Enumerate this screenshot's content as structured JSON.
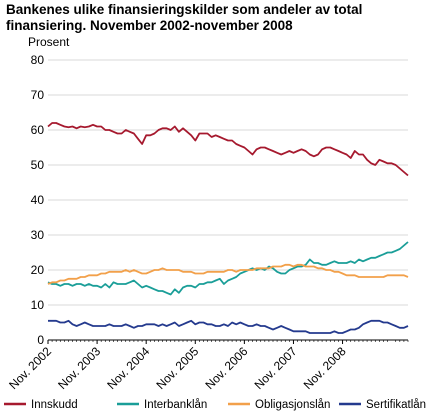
{
  "chart_data": {
    "type": "line",
    "title": "Bankenes ulike finansieringskilder som andeler av total finansiering. November 2002-november 2008",
    "ylabel": "Prosent",
    "xlabel": "",
    "ylim": [
      0,
      80
    ],
    "yticks": [
      0,
      10,
      20,
      30,
      40,
      50,
      60,
      70,
      80
    ],
    "grid": true,
    "legend_position": "bottom",
    "x_start": "2002-11",
    "x_step": "month",
    "x_tick_labels": [
      "Nov. 2002",
      "Nov. 2003",
      "Nov. 2004",
      "Nov. 2005",
      "Nov. 2006",
      "Nov. 2007",
      "Nov. 2008"
    ],
    "series": [
      {
        "name": "Innskudd",
        "color": "#a6192e",
        "values": [
          61.0,
          62.0,
          62.0,
          61.5,
          61.0,
          60.8,
          61.0,
          60.5,
          61.0,
          60.8,
          61.0,
          61.5,
          61.0,
          61.0,
          60.0,
          60.0,
          59.5,
          59.0,
          59.0,
          60.0,
          59.5,
          59.0,
          57.5,
          56.0,
          58.5,
          58.5,
          59.0,
          60.0,
          60.5,
          60.5,
          60.0,
          61.0,
          59.5,
          60.5,
          59.5,
          58.5,
          57.0,
          59.0,
          59.0,
          59.0,
          58.0,
          58.5,
          58.0,
          57.5,
          57.0,
          57.0,
          56.0,
          55.5,
          55.0,
          54.0,
          53.0,
          54.5,
          55.0,
          55.0,
          54.5,
          54.0,
          53.5,
          53.0,
          53.5,
          54.0,
          53.5,
          54.0,
          54.5,
          54.0,
          53.0,
          52.5,
          53.0,
          54.5,
          55.0,
          55.0,
          54.5,
          54.0,
          53.5,
          53.0,
          52.0,
          54.0,
          53.0,
          53.0,
          51.5,
          50.5,
          50.0,
          51.5,
          51.0,
          50.5,
          50.5,
          50.0,
          49.0,
          48.0,
          47.0
        ]
      },
      {
        "name": "Interbanklån",
        "color": "#1a9e98",
        "values": [
          16.5,
          16.0,
          16.0,
          15.5,
          16.0,
          16.0,
          15.5,
          16.0,
          16.0,
          15.5,
          16.0,
          15.5,
          15.5,
          15.0,
          16.0,
          15.0,
          16.5,
          16.0,
          16.0,
          16.0,
          16.5,
          17.0,
          16.0,
          15.0,
          15.5,
          15.0,
          14.5,
          14.0,
          14.0,
          13.5,
          13.0,
          14.5,
          13.5,
          15.0,
          15.5,
          15.5,
          15.0,
          16.0,
          16.0,
          16.5,
          16.5,
          17.0,
          17.5,
          16.0,
          17.0,
          17.5,
          18.0,
          19.0,
          19.5,
          20.0,
          20.5,
          20.0,
          20.5,
          20.0,
          21.0,
          20.5,
          19.5,
          19.0,
          19.0,
          20.0,
          20.5,
          21.0,
          21.0,
          21.5,
          23.0,
          22.0,
          22.0,
          21.5,
          21.5,
          22.0,
          22.5,
          22.0,
          22.0,
          22.0,
          22.5,
          22.0,
          23.0,
          22.5,
          23.0,
          23.5,
          23.5,
          24.0,
          24.5,
          25.0,
          25.0,
          25.5,
          26.0,
          27.0,
          28.0
        ]
      },
      {
        "name": "Obligasjonslån",
        "color": "#f2a04a",
        "values": [
          16.0,
          16.5,
          16.5,
          17.0,
          17.0,
          17.5,
          17.5,
          17.5,
          18.0,
          18.0,
          18.5,
          18.5,
          18.5,
          19.0,
          19.0,
          19.5,
          19.5,
          19.5,
          19.5,
          20.0,
          19.5,
          20.0,
          19.5,
          19.0,
          19.0,
          19.5,
          20.0,
          20.0,
          20.5,
          20.0,
          20.0,
          20.0,
          20.0,
          19.5,
          19.5,
          19.5,
          19.0,
          19.0,
          19.0,
          19.5,
          19.5,
          19.5,
          19.5,
          19.5,
          20.0,
          20.0,
          19.5,
          20.0,
          20.0,
          20.0,
          20.0,
          20.5,
          20.5,
          20.5,
          20.5,
          21.0,
          21.0,
          21.0,
          21.5,
          21.5,
          21.0,
          21.5,
          21.5,
          21.0,
          21.0,
          21.0,
          20.5,
          20.5,
          20.0,
          20.0,
          19.5,
          19.5,
          19.0,
          18.5,
          18.5,
          18.5,
          18.0,
          18.0,
          18.0,
          18.0,
          18.0,
          18.0,
          18.0,
          18.5,
          18.5,
          18.5,
          18.5,
          18.5,
          18.0
        ]
      },
      {
        "name": "Sertifikatlån",
        "color": "#243a8e",
        "values": [
          5.5,
          5.5,
          5.5,
          5.0,
          5.0,
          5.5,
          4.5,
          4.0,
          4.5,
          5.0,
          4.5,
          4.0,
          4.0,
          4.0,
          4.0,
          4.5,
          4.0,
          4.0,
          4.0,
          4.5,
          4.0,
          3.5,
          4.0,
          4.0,
          4.5,
          4.5,
          4.5,
          4.0,
          4.5,
          4.0,
          4.5,
          5.0,
          4.0,
          4.5,
          5.0,
          5.5,
          4.5,
          5.0,
          5.0,
          4.5,
          4.5,
          4.0,
          4.0,
          4.5,
          4.0,
          5.0,
          4.5,
          5.0,
          4.5,
          4.0,
          4.0,
          4.5,
          4.0,
          4.0,
          3.5,
          3.0,
          3.5,
          4.0,
          3.5,
          3.0,
          2.5,
          2.5,
          2.5,
          2.5,
          2.0,
          2.0,
          2.0,
          2.0,
          2.0,
          2.0,
          2.5,
          2.0,
          2.0,
          2.5,
          3.0,
          3.0,
          3.5,
          4.5,
          5.0,
          5.5,
          5.5,
          5.5,
          5.0,
          5.0,
          4.5,
          4.0,
          3.5,
          3.5,
          4.0
        ]
      }
    ]
  }
}
